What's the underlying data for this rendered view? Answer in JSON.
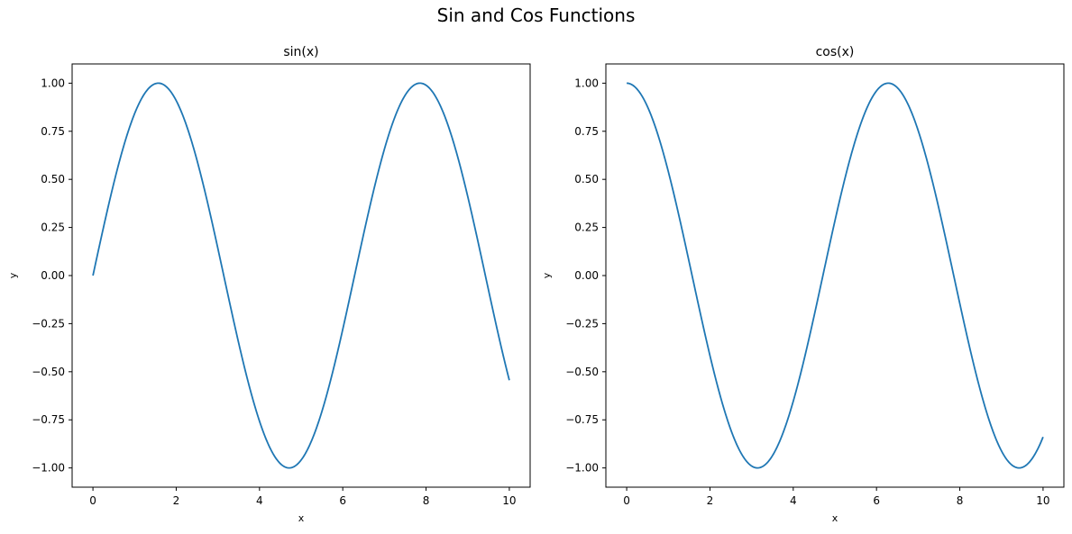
{
  "figure": {
    "title": "Sin and Cos Functions"
  },
  "chart_data": [
    {
      "type": "line",
      "title": "sin(x)",
      "xlabel": "x",
      "ylabel": "y",
      "function": "sin",
      "x_range": [
        0,
        10
      ],
      "xlim": [
        -0.5,
        10.5
      ],
      "ylim": [
        -1.1,
        1.1
      ],
      "xticks": [
        0,
        2,
        4,
        6,
        8,
        10
      ],
      "xtick_labels": [
        "0",
        "2",
        "4",
        "6",
        "8",
        "10"
      ],
      "yticks": [
        -1.0,
        -0.75,
        -0.5,
        -0.25,
        0.0,
        0.25,
        0.5,
        0.75,
        1.0
      ],
      "ytick_labels": [
        "−1.00",
        "−0.75",
        "−0.50",
        "−0.25",
        "0.00",
        "0.25",
        "0.50",
        "0.75",
        "1.00"
      ],
      "grid": false,
      "color": "#1f77b4",
      "series": [
        {
          "x": [
            0,
            0.5,
            1,
            1.5,
            2,
            2.5,
            3,
            3.5,
            4,
            4.5,
            5,
            5.5,
            6,
            6.5,
            7,
            7.5,
            8,
            8.5,
            9,
            9.5,
            10
          ],
          "y": [
            0.0,
            0.479,
            0.841,
            0.997,
            0.909,
            0.598,
            0.141,
            -0.351,
            -0.757,
            -0.978,
            -0.959,
            -0.706,
            -0.279,
            0.215,
            0.657,
            0.938,
            0.989,
            0.798,
            0.412,
            -0.075,
            -0.544
          ]
        }
      ]
    },
    {
      "type": "line",
      "title": "cos(x)",
      "xlabel": "x",
      "ylabel": "y",
      "function": "cos",
      "x_range": [
        0,
        10
      ],
      "xlim": [
        -0.5,
        10.5
      ],
      "ylim": [
        -1.1,
        1.1
      ],
      "xticks": [
        0,
        2,
        4,
        6,
        8,
        10
      ],
      "xtick_labels": [
        "0",
        "2",
        "4",
        "6",
        "8",
        "10"
      ],
      "yticks": [
        -1.0,
        -0.75,
        -0.5,
        -0.25,
        0.0,
        0.25,
        0.5,
        0.75,
        1.0
      ],
      "ytick_labels": [
        "−1.00",
        "−0.75",
        "−0.50",
        "−0.25",
        "0.00",
        "0.25",
        "0.50",
        "0.75",
        "1.00"
      ],
      "grid": false,
      "color": "#1f77b4",
      "series": [
        {
          "x": [
            0,
            0.5,
            1,
            1.5,
            2,
            2.5,
            3,
            3.5,
            4,
            4.5,
            5,
            5.5,
            6,
            6.5,
            7,
            7.5,
            8,
            8.5,
            9,
            9.5,
            10
          ],
          "y": [
            1.0,
            0.878,
            0.54,
            0.071,
            -0.416,
            -0.801,
            -0.99,
            -0.936,
            -0.654,
            -0.211,
            0.284,
            0.709,
            0.96,
            0.977,
            0.754,
            0.347,
            -0.146,
            -0.602,
            -0.911,
            -0.997,
            -0.839
          ]
        }
      ]
    }
  ]
}
